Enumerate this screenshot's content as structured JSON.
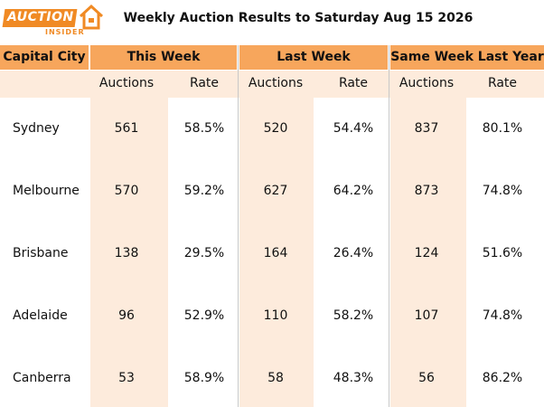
{
  "logo": {
    "word": "AUCTION",
    "subword": "INSIDER"
  },
  "header": {
    "title": "Weekly Auction Results to Saturday Aug 15 2026"
  },
  "table": {
    "headers": [
      "Capital City",
      "This Week",
      "Last Week",
      "Same Week Last Year"
    ],
    "subheaders": [
      "Auctions",
      "Rate",
      "Auctions",
      "Rate",
      "Auctions",
      "Rate"
    ],
    "rows": [
      [
        "Sydney",
        "561",
        "58.5%",
        "520",
        "54.4%",
        "837",
        "80.1%"
      ],
      [
        "Melbourne",
        "570",
        "59.2%",
        "627",
        "64.2%",
        "873",
        "74.8%"
      ],
      [
        "Brisbane",
        "138",
        "29.5%",
        "164",
        "26.4%",
        "124",
        "51.6%"
      ],
      [
        "Adelaide",
        "96",
        "52.9%",
        "110",
        "58.2%",
        "107",
        "74.8%"
      ],
      [
        "Canberra",
        "53",
        "58.9%",
        "58",
        "48.3%",
        "56",
        "86.2%"
      ]
    ]
  }
}
